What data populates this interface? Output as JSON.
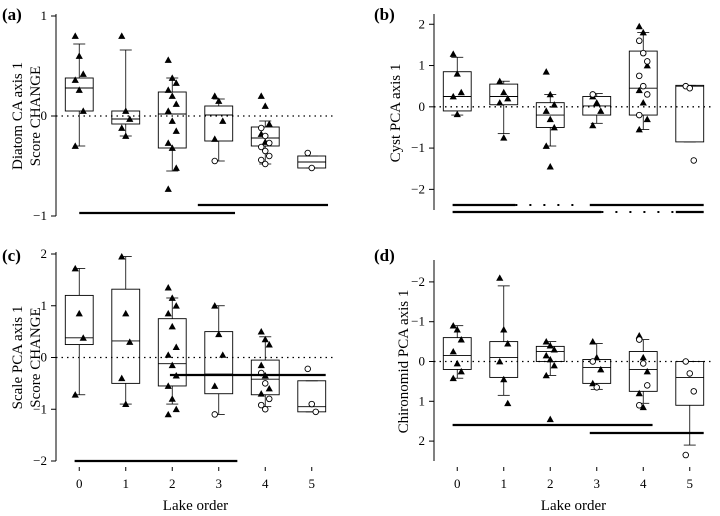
{
  "chart_data": [
    {
      "type": "box",
      "panel_label": "(a)",
      "ylabel": [
        "Diatom CA axis 1",
        "Score CHANGE"
      ],
      "xlabel": "",
      "categories": [
        "0",
        "1",
        "2",
        "3",
        "4",
        "5"
      ],
      "ylim": [
        -1,
        1
      ],
      "y_reversed": false,
      "yticks": [
        -1,
        0,
        1
      ],
      "ytick_labels": [
        "−1",
        "0",
        "1"
      ],
      "reference_line": 0,
      "boxes": [
        {
          "category": "0",
          "whisker_low": -0.3,
          "q1": 0.05,
          "median": 0.28,
          "q3": 0.38,
          "whisker_high": 0.72
        },
        {
          "category": "1",
          "whisker_low": -0.2,
          "q1": -0.08,
          "median": -0.03,
          "q3": 0.05,
          "whisker_high": 0.66
        },
        {
          "category": "2",
          "whisker_low": -0.55,
          "q1": -0.32,
          "median": 0.02,
          "q3": 0.24,
          "whisker_high": 0.38
        },
        {
          "category": "3",
          "whisker_low": -0.45,
          "q1": -0.25,
          "median": 0.01,
          "q3": 0.1,
          "whisker_high": 0.17
        },
        {
          "category": "4",
          "whisker_low": -0.48,
          "q1": -0.3,
          "median": -0.22,
          "q3": -0.11,
          "whisker_high": -0.05
        },
        {
          "category": "5",
          "whisker_low": -0.52,
          "q1": -0.52,
          "median": -0.46,
          "q3": -0.4,
          "whisker_high": -0.4
        }
      ],
      "points": [
        {
          "category": "0",
          "values": [
            0.8,
            0.6,
            0.42,
            0.36,
            0.26,
            0.05,
            -0.3
          ],
          "marker": "triangle"
        },
        {
          "category": "1",
          "values": [
            0.8,
            0.05,
            -0.03,
            -0.12,
            -0.2
          ],
          "marker": "triangle"
        },
        {
          "category": "2",
          "values": [
            0.56,
            0.38,
            0.33,
            0.26,
            0.2,
            0.12,
            0.05,
            -0.05,
            -0.15,
            -0.27,
            -0.32,
            -0.52,
            -0.73
          ],
          "marker": "triangle"
        },
        {
          "category": "3",
          "values": [
            0.2,
            0.15,
            -0.05,
            -0.23
          ],
          "marker": "triangle"
        },
        {
          "category": "3",
          "values": [
            -0.45
          ],
          "marker": "circle"
        },
        {
          "category": "4",
          "values": [
            0.2,
            0.1,
            -0.08,
            -0.18,
            -0.26
          ],
          "marker": "triangle"
        },
        {
          "category": "4",
          "values": [
            -0.12,
            -0.2,
            -0.27,
            -0.31,
            -0.35,
            -0.4,
            -0.44,
            -0.48
          ],
          "marker": "circle"
        },
        {
          "category": "5",
          "values": [
            -0.37,
            -0.52
          ],
          "marker": "circle"
        }
      ],
      "groupings": [
        {
          "rows": [
            {
              "from": 0,
              "to": 3.35,
              "style": "solid",
              "lane": 0
            },
            {
              "from": 2.55,
              "to": 5.35,
              "style": "solid",
              "lane": -1
            }
          ]
        }
      ]
    },
    {
      "type": "box",
      "panel_label": "(b)",
      "ylabel": [
        "Cyst PCA axis 1"
      ],
      "xlabel": "",
      "categories": [
        "0",
        "1",
        "2",
        "3",
        "4",
        "5"
      ],
      "ylim": [
        -2.5,
        2.2
      ],
      "y_reversed": false,
      "yticks": [
        -2,
        -1,
        0,
        1,
        2
      ],
      "ytick_labels": [
        "−2",
        "−1",
        "0",
        "1",
        "2"
      ],
      "reference_line": 0,
      "boxes": [
        {
          "category": "0",
          "whisker_low": -0.2,
          "q1": -0.1,
          "median": 0.25,
          "q3": 0.85,
          "whisker_high": 1.2
        },
        {
          "category": "1",
          "whisker_low": -0.65,
          "q1": 0.05,
          "median": 0.25,
          "q3": 0.55,
          "whisker_high": 0.62
        },
        {
          "category": "2",
          "whisker_low": -0.95,
          "q1": -0.5,
          "median": -0.2,
          "q3": 0.1,
          "whisker_high": 0.3
        },
        {
          "category": "3",
          "whisker_low": -0.4,
          "q1": -0.2,
          "median": 0.02,
          "q3": 0.25,
          "whisker_high": 0.32
        },
        {
          "category": "4",
          "whisker_low": -0.55,
          "q1": -0.2,
          "median": 0.45,
          "q3": 1.35,
          "whisker_high": 1.8
        },
        {
          "category": "5",
          "whisker_low": -0.85,
          "q1": -0.85,
          "median": 0.5,
          "q3": 0.52,
          "whisker_high": 0.52
        }
      ],
      "points": [
        {
          "category": "0",
          "values": [
            1.28,
            0.8,
            0.35,
            0.25,
            -0.18
          ],
          "marker": "triangle"
        },
        {
          "category": "1",
          "values": [
            0.62,
            0.35,
            0.2,
            0.1,
            -0.75
          ],
          "marker": "triangle"
        },
        {
          "category": "2",
          "values": [
            0.85,
            0.3,
            0.05,
            -0.1,
            -0.3,
            -0.5,
            -0.95,
            -1.45
          ],
          "marker": "triangle"
        },
        {
          "category": "3",
          "values": [
            0.25,
            0.1,
            -0.1,
            -0.45
          ],
          "marker": "triangle"
        },
        {
          "category": "3",
          "values": [
            0.3
          ],
          "marker": "circle"
        },
        {
          "category": "4",
          "values": [
            1.95,
            1.8,
            1.0,
            0.4,
            0.1,
            -0.3,
            -0.55
          ],
          "marker": "triangle"
        },
        {
          "category": "4",
          "values": [
            1.6,
            1.3,
            1.1,
            0.75,
            0.5,
            0.3,
            -0.2
          ],
          "marker": "circle"
        },
        {
          "category": "5",
          "values": [
            0.5,
            0.45,
            -1.3
          ],
          "marker": "circle"
        }
      ],
      "groupings": [
        {
          "rows": [
            {
              "from": -0.1,
              "to": 1.25,
              "style": "solid",
              "lane": 0
            },
            {
              "from": 1.25,
              "to": 2.5,
              "style": "dotted",
              "lane": 0
            },
            {
              "from": 2.85,
              "to": 5.3,
              "style": "solid",
              "lane": 0
            },
            {
              "from": -0.1,
              "to": 3.1,
              "style": "solid",
              "lane": 1
            },
            {
              "from": 3.1,
              "to": 4.7,
              "style": "dotted",
              "lane": 1
            },
            {
              "from": 4.7,
              "to": 5.3,
              "style": "solid",
              "lane": 1
            }
          ]
        }
      ]
    },
    {
      "type": "box",
      "panel_label": "(c)",
      "ylabel": [
        "Scale PCA axis 1",
        "Score CHANGE"
      ],
      "xlabel": "Lake order",
      "categories": [
        "0",
        "1",
        "2",
        "3",
        "4",
        "5"
      ],
      "ylim": [
        -2,
        2
      ],
      "y_reversed": false,
      "yticks": [
        -2,
        -1,
        0,
        1,
        2
      ],
      "ytick_labels": [
        "−2",
        "−1",
        "0",
        "1",
        "2"
      ],
      "reference_line": 0,
      "boxes": [
        {
          "category": "0",
          "whisker_low": -0.72,
          "q1": 0.25,
          "median": 0.38,
          "q3": 1.2,
          "whisker_high": 1.72
        },
        {
          "category": "1",
          "whisker_low": -0.9,
          "q1": -0.5,
          "median": 0.32,
          "q3": 1.32,
          "whisker_high": 1.95
        },
        {
          "category": "2",
          "whisker_low": -0.9,
          "q1": -0.55,
          "median": -0.12,
          "q3": 0.75,
          "whisker_high": 1.15
        },
        {
          "category": "3",
          "whisker_low": -1.1,
          "q1": -0.7,
          "median": -0.32,
          "q3": 0.5,
          "whisker_high": 1.0
        },
        {
          "category": "4",
          "whisker_low": -0.95,
          "q1": -0.72,
          "median": -0.42,
          "q3": -0.05,
          "whisker_high": 0.4
        },
        {
          "category": "5",
          "whisker_low": -1.05,
          "q1": -1.05,
          "median": -0.95,
          "q3": -0.45,
          "whisker_high": -0.45
        }
      ],
      "points": [
        {
          "category": "0",
          "values": [
            1.72,
            0.85,
            0.38,
            -0.72
          ],
          "marker": "triangle"
        },
        {
          "category": "1",
          "values": [
            1.95,
            0.85,
            0.3,
            -0.4,
            -0.9
          ],
          "marker": "triangle"
        },
        {
          "category": "2",
          "values": [
            1.35,
            1.15,
            1.0,
            0.85,
            0.6,
            0.2,
            0.05,
            -0.15,
            -0.35,
            -0.55,
            -0.8,
            -1.0,
            -1.1
          ],
          "marker": "triangle"
        },
        {
          "category": "3",
          "values": [
            1.0,
            0.45,
            0.05,
            -0.55
          ],
          "marker": "triangle"
        },
        {
          "category": "3",
          "values": [
            -1.1
          ],
          "marker": "circle"
        },
        {
          "category": "4",
          "values": [
            0.5,
            0.35,
            0.25,
            -0.15,
            -0.35,
            -0.6,
            -0.7
          ],
          "marker": "triangle"
        },
        {
          "category": "4",
          "values": [
            -0.3,
            -0.5,
            -0.8,
            -0.92,
            -1.0
          ],
          "marker": "circle"
        },
        {
          "category": "5",
          "values": [
            -0.22,
            -0.9,
            -1.05
          ],
          "marker": "circle"
        }
      ],
      "groupings": [
        {
          "rows": [
            {
              "from": -0.1,
              "to": 3.4,
              "style": "solid",
              "lane": 0
            },
            {
              "from": 1.95,
              "to": 5.3,
              "style": "solid",
              "lane": -1
            }
          ]
        }
      ]
    },
    {
      "type": "box",
      "panel_label": "(d)",
      "ylabel": [
        "Chironomid PCA axis 1"
      ],
      "xlabel": "Lake order",
      "categories": [
        "0",
        "1",
        "2",
        "3",
        "4",
        "5"
      ],
      "ylim": [
        -2.5,
        2.5
      ],
      "y_reversed": true,
      "yticks": [
        -2,
        -1,
        0,
        1,
        2
      ],
      "ytick_labels": [
        "−2",
        "−1",
        "0",
        "1",
        "2"
      ],
      "reference_line": 0,
      "boxes": [
        {
          "category": "0",
          "whisker_low": -0.9,
          "q1": -0.6,
          "median": -0.15,
          "q3": 0.2,
          "whisker_high": 0.42
        },
        {
          "category": "1",
          "whisker_low": -1.9,
          "q1": -0.5,
          "median": -0.1,
          "q3": 0.4,
          "whisker_high": 0.85
        },
        {
          "category": "2",
          "whisker_low": -0.5,
          "q1": -0.38,
          "median": -0.25,
          "q3": 0.0,
          "whisker_high": 0.35
        },
        {
          "category": "3",
          "whisker_low": -0.45,
          "q1": -0.05,
          "median": 0.15,
          "q3": 0.55,
          "whisker_high": 0.7
        },
        {
          "category": "4",
          "whisker_low": -0.55,
          "q1": -0.25,
          "median": 0.2,
          "q3": 0.75,
          "whisker_high": 1.05
        },
        {
          "category": "5",
          "whisker_low": 0.0,
          "q1": 0.0,
          "median": 0.4,
          "q3": 1.1,
          "whisker_high": 2.1
        }
      ],
      "points": [
        {
          "category": "0",
          "values": [
            -0.9,
            -0.8,
            -0.55,
            -0.25,
            0.05,
            0.25,
            0.42
          ],
          "marker": "triangle"
        },
        {
          "category": "1",
          "values": [
            -2.1,
            -0.8,
            -0.45,
            0.0,
            0.45,
            1.05
          ],
          "marker": "triangle"
        },
        {
          "category": "2",
          "values": [
            -0.5,
            -0.4,
            -0.3,
            -0.15,
            -0.05,
            0.1,
            0.35,
            1.45
          ],
          "marker": "triangle"
        },
        {
          "category": "3",
          "values": [
            -0.5,
            -0.1,
            0.2,
            0.55
          ],
          "marker": "triangle"
        },
        {
          "category": "3",
          "values": [
            0.0,
            0.65
          ],
          "marker": "circle"
        },
        {
          "category": "4",
          "values": [
            -0.65,
            -0.1,
            0.25,
            0.8,
            1.15
          ],
          "marker": "triangle"
        },
        {
          "category": "4",
          "values": [
            -0.55,
            0.05,
            0.6,
            1.1
          ],
          "marker": "circle"
        },
        {
          "category": "5",
          "values": [
            0.0,
            0.3,
            0.75,
            2.35
          ],
          "marker": "circle"
        }
      ],
      "groupings": [
        {
          "rows": [
            {
              "from": -0.1,
              "to": 4.2,
              "style": "solid",
              "lane": -1
            },
            {
              "from": 2.85,
              "to": 5.3,
              "style": "solid",
              "lane": 0
            }
          ]
        }
      ]
    }
  ]
}
